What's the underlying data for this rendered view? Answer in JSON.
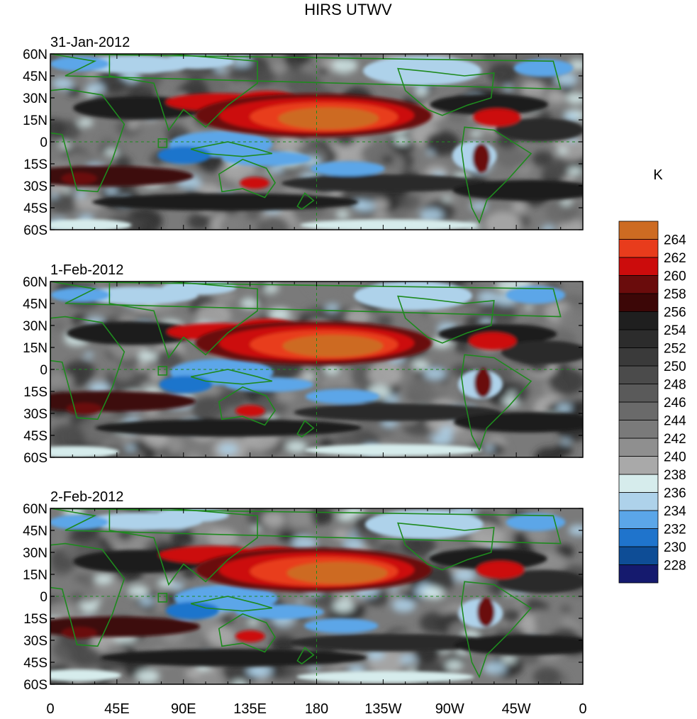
{
  "chart_data": {
    "type": "heatmap",
    "title": "HIRS UTWV",
    "unit": "K",
    "x_tick_labels": [
      "0",
      "45E",
      "90E",
      "135E",
      "180",
      "135W",
      "90W",
      "45W",
      "0"
    ],
    "y_tick_labels": [
      "60N",
      "45N",
      "30N",
      "15N",
      "0",
      "15S",
      "30S",
      "45S",
      "60S"
    ],
    "xlim": [
      0,
      360
    ],
    "ylim": [
      -60,
      60
    ],
    "colorbar": {
      "levels": [
        "228",
        "230",
        "232",
        "234",
        "236",
        "238",
        "240",
        "242",
        "244",
        "246",
        "248",
        "250",
        "252",
        "254",
        "256",
        "258",
        "260",
        "262",
        "264"
      ],
      "colors": [
        "#151a6e",
        "#0e4d96",
        "#1f74cc",
        "#5ba6e8",
        "#aed2ea",
        "#d6ecec",
        "#a9a9a9",
        "#8f8f8f",
        "#7a7a7a",
        "#6a6a6a",
        "#5a5a5a",
        "#4b4b4b",
        "#3a3a3a",
        "#2c2c2c",
        "#1f1f1f",
        "#3c0707",
        "#6a0c0c",
        "#cc0c0c",
        "#e83c1c",
        "#cd6b22"
      ]
    },
    "panels": [
      {
        "date": "31-Jan-2012"
      },
      {
        "date": "1-Feb-2012"
      },
      {
        "date": "2-Feb-2012"
      }
    ]
  }
}
